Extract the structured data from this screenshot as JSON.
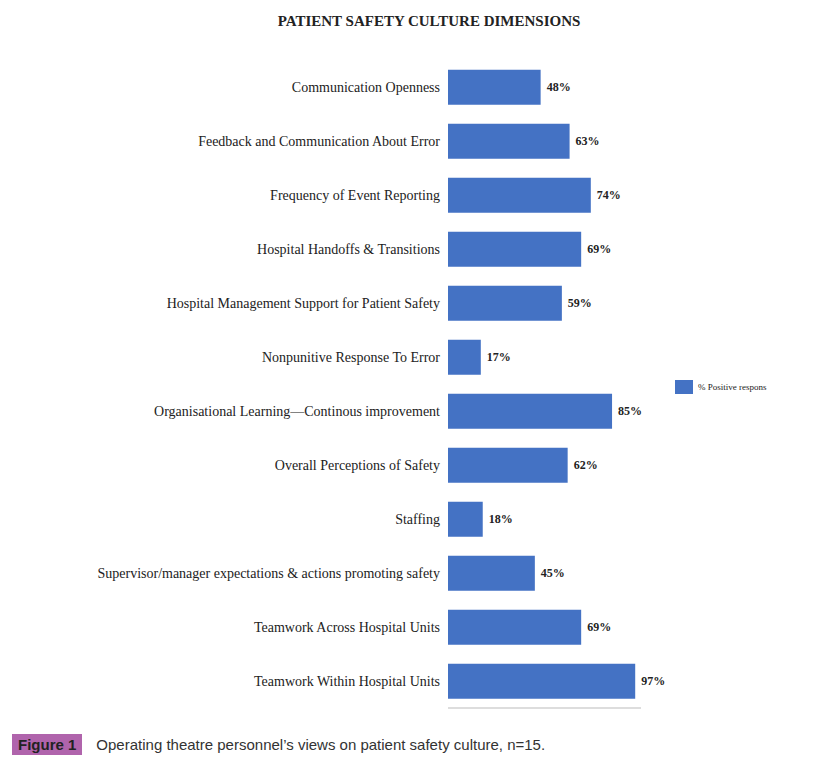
{
  "chart_data": {
    "type": "bar",
    "orientation": "horizontal",
    "title": "PATIENT SAFETY CULTURE DIMENSIONS",
    "categories": [
      "Communication Openness",
      "Feedback and Communication About Error",
      "Frequency of Event Reporting",
      "Hospital Handoffs & Transitions",
      "Hospital Management Support for Patient Safety",
      "Nonpunitive Response To Error",
      "Organisational Learning—Continous improvement",
      "Overall Perceptions of Safety",
      "Staffing",
      "Supervisor/manager expectations & actions promoting safety",
      "Teamwork Across Hospital Units",
      "Teamwork Within Hospital Units"
    ],
    "series": [
      {
        "name": "% Positive respons",
        "color": "#4472c4",
        "values": [
          48,
          63,
          74,
          69,
          59,
          17,
          85,
          62,
          18,
          45,
          69,
          97
        ],
        "value_labels": [
          "48%",
          "63%",
          "74%",
          "69%",
          "59%",
          "17%",
          "85%",
          "62%",
          "18%",
          "45%",
          "69%",
          "97%"
        ]
      }
    ],
    "xlim": [
      0,
      100
    ],
    "xticks": [],
    "data_labels": true,
    "tick_labels": "y",
    "legend": "right",
    "grid": false,
    "figure_label": "Figure 1",
    "caption": "Operating theatre personnel’s views on patient safety culture, n=15."
  }
}
